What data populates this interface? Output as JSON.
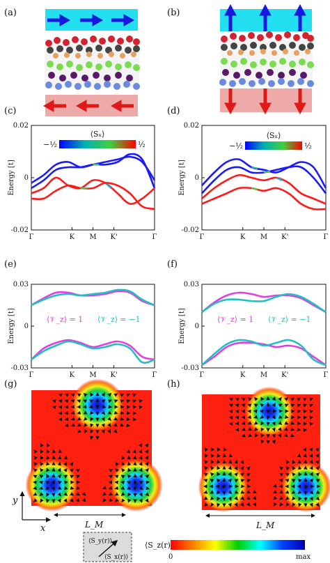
{
  "panel_labels": [
    "(a)",
    "(b)",
    "(c)",
    "(d)",
    "(e)",
    "(f)",
    "(g)",
    "(h)"
  ],
  "colors": {
    "spin_arrow_blue": "#1818e0",
    "spin_arrow_red": "#e01818",
    "cyan_box": "#22e0f0",
    "pink_box": "#eea9a9",
    "valley_plus": "#e040e0",
    "valley_minus": "#20c0c0"
  },
  "sx_colorbar": {
    "label": "⟨Sₓ⟩",
    "min_label": "−½",
    "max_label": "½",
    "gradient": [
      "#0000ff",
      "#00b0b0",
      "#40d040",
      "#ff0000"
    ]
  },
  "sz_colorbar": {
    "label": "⟨S_z(r)⟩",
    "min_label": "0",
    "max_label": "max",
    "gradient": [
      "#ff0000",
      "#ff8000",
      "#ffff00",
      "#00d000",
      "#00ffff",
      "#0040ff",
      "#0000b0"
    ]
  },
  "inset_legend": {
    "top_label": "⟨S_y(r)⟩",
    "bottom_label": "⟨S_x(r)⟩"
  },
  "map_axes": {
    "x_label": "x",
    "y_label": "y",
    "period_label": "L_M"
  },
  "chart_data": [
    {
      "panel": "(c)",
      "type": "line",
      "ylabel": "Energy [t]",
      "ylim": [
        -0.02,
        0.02
      ],
      "yticks": [
        "0.02",
        "0",
        "-0.02"
      ],
      "xticks": [
        "Γ",
        "K",
        "M",
        "K'",
        "Γ"
      ],
      "colorbar": "⟨Sₓ⟩",
      "series": [
        {
          "color_mode": "spin",
          "x": [
            0,
            1,
            2,
            3,
            4,
            5,
            6,
            7,
            8,
            9,
            10
          ],
          "values": [
            -0.002,
            0.001,
            0.005,
            0.006,
            0.004,
            0.005,
            0.006,
            0.007,
            0.008,
            0.006,
            -0.001
          ]
        },
        {
          "color_mode": "spin",
          "x": [
            0,
            1,
            2,
            3,
            4,
            5,
            6,
            7,
            8,
            9,
            10
          ],
          "values": [
            -0.004,
            -0.001,
            0.003,
            0.004,
            0.004,
            0.005,
            0.005,
            0.006,
            0.009,
            0.007,
            -0.004
          ]
        },
        {
          "color_mode": "spin",
          "x": [
            0,
            1,
            2,
            3,
            4,
            5,
            6,
            7,
            8,
            9,
            10
          ],
          "values": [
            -0.006,
            -0.004,
            0.0,
            -0.003,
            -0.004,
            -0.001,
            -0.002,
            -0.006,
            -0.01,
            -0.008,
            -0.004
          ]
        },
        {
          "color_mode": "spin",
          "x": [
            0,
            1,
            2,
            3,
            4,
            5,
            6,
            7,
            8,
            9,
            10
          ],
          "values": [
            -0.008,
            -0.008,
            -0.005,
            -0.003,
            -0.004,
            -0.004,
            -0.002,
            -0.003,
            -0.006,
            -0.011,
            -0.012
          ]
        }
      ]
    },
    {
      "panel": "(d)",
      "type": "line",
      "ylabel": "Energy [t]",
      "ylim": [
        -0.02,
        0.02
      ],
      "yticks": [
        "0.02",
        "0",
        "-0.02"
      ],
      "xticks": [
        "Γ",
        "K",
        "M",
        "K'",
        "Γ"
      ],
      "colorbar": "⟨Sₓ⟩",
      "series": [
        {
          "color_mode": "spin",
          "x": [
            0,
            1,
            2,
            3,
            4,
            5,
            6,
            7,
            8,
            9,
            10
          ],
          "values": [
            -0.003,
            0.002,
            0.006,
            0.007,
            0.004,
            0.003,
            0.002,
            0.004,
            0.006,
            0.004,
            -0.004
          ]
        },
        {
          "color_mode": "spin",
          "x": [
            0,
            1,
            2,
            3,
            4,
            5,
            6,
            7,
            8,
            9,
            10
          ],
          "values": [
            -0.006,
            -0.001,
            0.003,
            0.004,
            0.002,
            0.002,
            0.003,
            0.004,
            0.004,
            0.0,
            -0.006
          ]
        },
        {
          "color_mode": "spin",
          "x": [
            0,
            1,
            2,
            3,
            4,
            5,
            6,
            7,
            8,
            9,
            10
          ],
          "values": [
            -0.008,
            -0.004,
            -0.001,
            0.001,
            0.0,
            -0.001,
            0.0,
            -0.002,
            -0.006,
            -0.008,
            -0.01
          ]
        },
        {
          "color_mode": "spin",
          "x": [
            0,
            1,
            2,
            3,
            4,
            5,
            6,
            7,
            8,
            9,
            10
          ],
          "values": [
            -0.01,
            -0.008,
            -0.006,
            -0.004,
            -0.004,
            -0.005,
            -0.004,
            -0.006,
            -0.01,
            -0.012,
            -0.012
          ]
        }
      ]
    },
    {
      "panel": "(e)",
      "type": "line",
      "ylabel": "Energy [t]",
      "ylim": [
        -0.03,
        0.03
      ],
      "yticks": [
        "0.03",
        "0",
        "-0.03"
      ],
      "xticks": [
        "Γ",
        "K",
        "M",
        "K'",
        "Γ"
      ],
      "legend": [
        "⟨𝒱_z⟩ = 1",
        "⟨𝒱_z⟩ = −1"
      ],
      "series": [
        {
          "name": "⟨𝒱_z⟩ = 1",
          "x": [
            0,
            1,
            2,
            3,
            4,
            5,
            6,
            7,
            8,
            9,
            10
          ],
          "values": [
            0.015,
            0.02,
            0.024,
            0.024,
            0.022,
            0.022,
            0.023,
            0.025,
            0.024,
            0.018,
            0.015
          ]
        },
        {
          "name": "⟨𝒱_z⟩ = −1",
          "x": [
            0,
            1,
            2,
            3,
            4,
            5,
            6,
            7,
            8,
            9,
            10
          ],
          "values": [
            0.015,
            0.019,
            0.022,
            0.023,
            0.022,
            0.023,
            0.024,
            0.026,
            0.025,
            0.019,
            0.015
          ]
        },
        {
          "name": "⟨𝒱_z⟩ = 1",
          "x": [
            0,
            1,
            2,
            3,
            4,
            5,
            6,
            7,
            8,
            9,
            10
          ],
          "values": [
            -0.024,
            -0.016,
            -0.012,
            -0.01,
            -0.012,
            -0.015,
            -0.013,
            -0.011,
            -0.014,
            -0.022,
            -0.024
          ]
        },
        {
          "name": "⟨𝒱_z⟩ = −1",
          "x": [
            0,
            1,
            2,
            3,
            4,
            5,
            6,
            7,
            8,
            9,
            10
          ],
          "values": [
            -0.024,
            -0.018,
            -0.014,
            -0.011,
            -0.013,
            -0.016,
            -0.015,
            -0.013,
            -0.016,
            -0.026,
            -0.024
          ]
        }
      ]
    },
    {
      "panel": "(f)",
      "type": "line",
      "ylabel": "Energy [t]",
      "ylim": [
        -0.03,
        0.03
      ],
      "yticks": [
        "0.03",
        "0",
        "-0.03"
      ],
      "xticks": [
        "Γ",
        "K",
        "M",
        "K'",
        "Γ"
      ],
      "legend": [
        "⟨𝒱_z⟩ = 1",
        "⟨𝒱_z⟩ = −1"
      ],
      "series": [
        {
          "name": "⟨𝒱_z⟩ = 1",
          "x": [
            0,
            1,
            2,
            3,
            4,
            5,
            6,
            7,
            8,
            9,
            10
          ],
          "values": [
            0.01,
            0.017,
            0.022,
            0.024,
            0.023,
            0.021,
            0.022,
            0.022,
            0.02,
            0.015,
            0.01
          ]
        },
        {
          "name": "⟨𝒱_z⟩ = −1",
          "x": [
            0,
            1,
            2,
            3,
            4,
            5,
            6,
            7,
            8,
            9,
            10
          ],
          "values": [
            0.01,
            0.016,
            0.019,
            0.019,
            0.018,
            0.018,
            0.021,
            0.023,
            0.021,
            0.016,
            0.01
          ]
        },
        {
          "name": "⟨𝒱_z⟩ = 1",
          "x": [
            0,
            1,
            2,
            3,
            4,
            5,
            6,
            7,
            8,
            9,
            10
          ],
          "values": [
            -0.028,
            -0.022,
            -0.015,
            -0.012,
            -0.012,
            -0.013,
            -0.015,
            -0.014,
            -0.016,
            -0.022,
            -0.028
          ]
        },
        {
          "name": "⟨𝒱_z⟩ = −1",
          "x": [
            0,
            1,
            2,
            3,
            4,
            5,
            6,
            7,
            8,
            9,
            10
          ],
          "values": [
            -0.028,
            -0.02,
            -0.013,
            -0.01,
            -0.011,
            -0.014,
            -0.012,
            -0.01,
            -0.014,
            -0.024,
            -0.028
          ]
        }
      ]
    },
    {
      "panel": "(g)",
      "type": "heatmap",
      "colorbar": "⟨S_z(r)⟩",
      "xlabel": "x",
      "ylabel": "y",
      "period": "L_M",
      "vortex_centers": [
        [
          0.55,
          0.13
        ],
        [
          0.17,
          0.82
        ],
        [
          0.87,
          0.82
        ]
      ]
    },
    {
      "panel": "(h)",
      "type": "heatmap",
      "colorbar": "⟨S_z(r)⟩",
      "period": "L_M",
      "vortex_centers": [
        [
          0.57,
          0.15
        ],
        [
          0.18,
          0.8
        ],
        [
          0.88,
          0.8
        ]
      ]
    }
  ]
}
